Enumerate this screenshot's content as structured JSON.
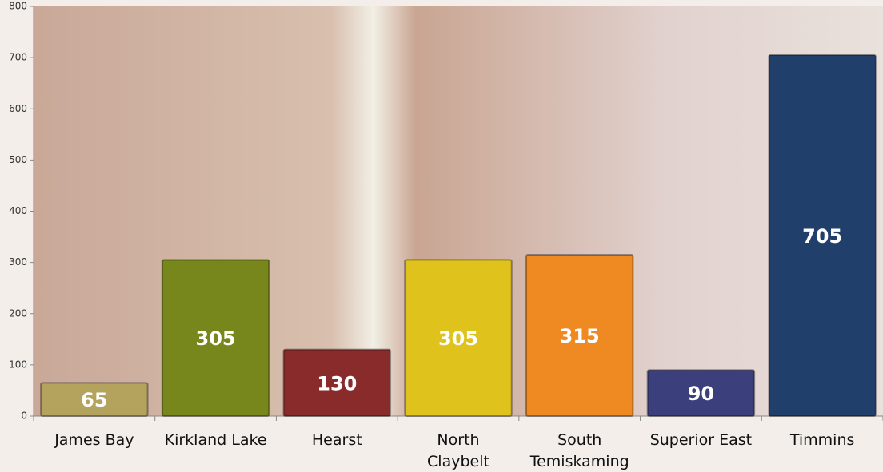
{
  "chart_data": {
    "type": "bar",
    "categories": [
      "James Bay",
      "Kirkland Lake",
      "Hearst",
      "North\nClaybelt",
      "South\nTemiskaming",
      "Superior East",
      "Timmins"
    ],
    "values": [
      65,
      305,
      130,
      305,
      315,
      90,
      705
    ],
    "colors": [
      "#b3a35c",
      "#77871c",
      "#8a2b2b",
      "#e0c21c",
      "#ef8a22",
      "#3b3f7c",
      "#213f6b"
    ],
    "ylim": [
      0,
      800
    ],
    "yticks": [
      0,
      100,
      200,
      300,
      400,
      500,
      600,
      700,
      800
    ]
  }
}
